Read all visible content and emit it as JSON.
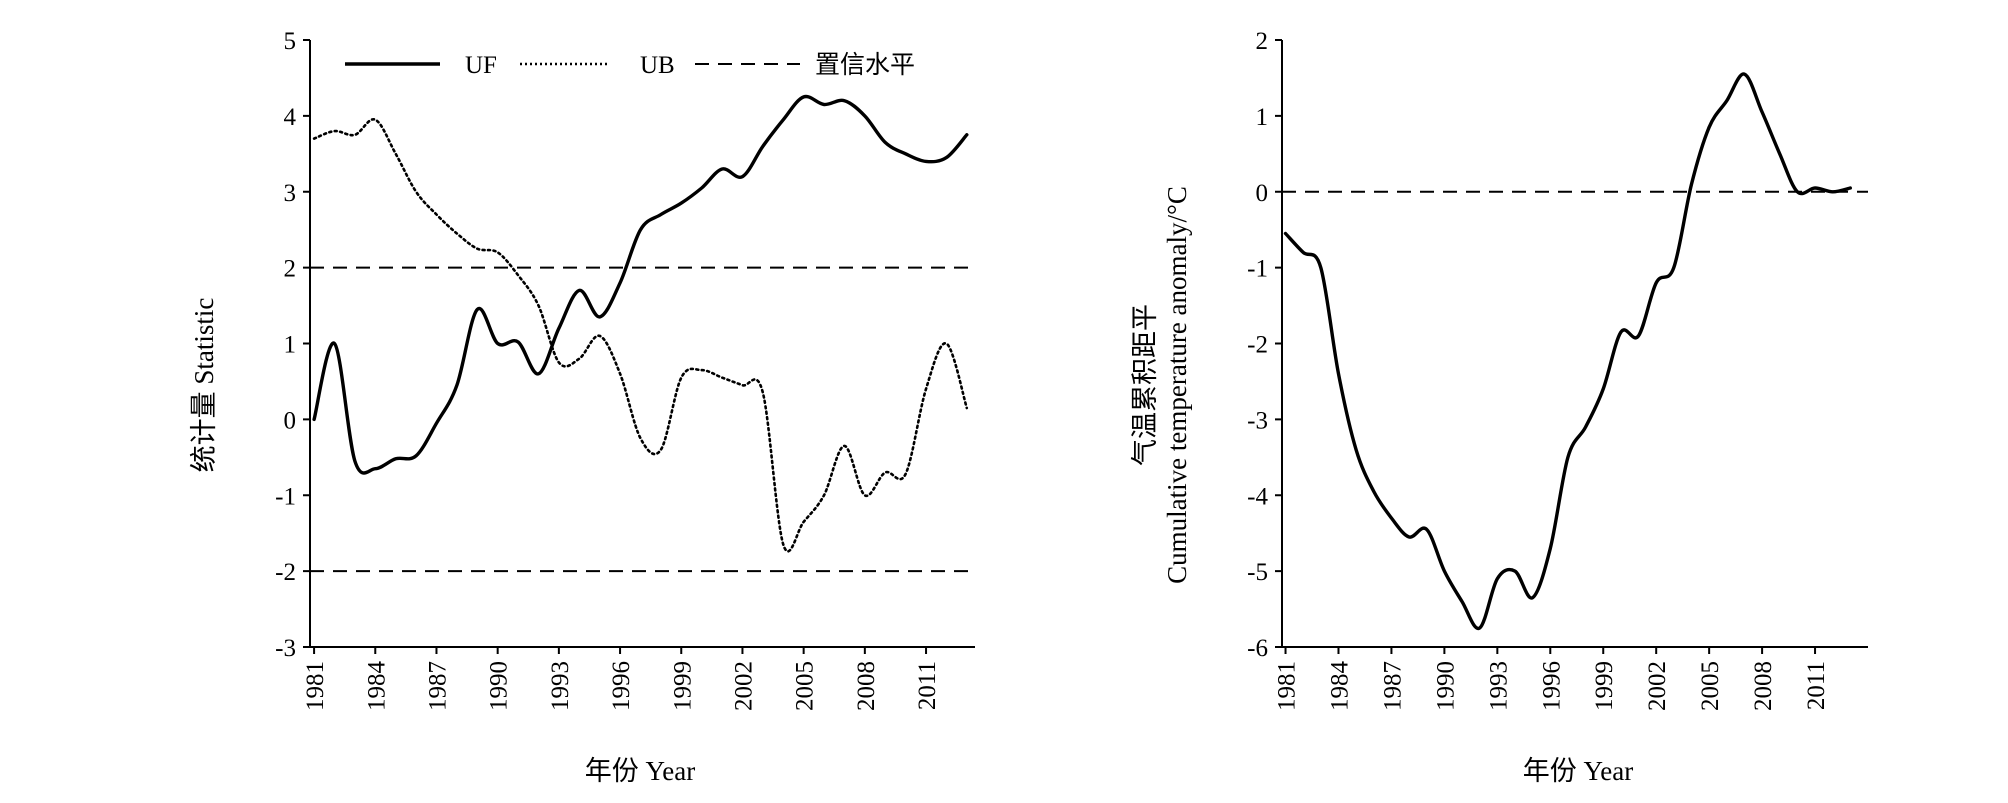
{
  "chart_data": [
    {
      "type": "line",
      "xlabel": "年份 Year",
      "ylabel": "统计量 Statistic",
      "xlim": [
        1980.8,
        2013.4
      ],
      "ylim": [
        -3,
        5
      ],
      "x_ticks": [
        "1981",
        "1984",
        "1987",
        "1990",
        "1993",
        "1996",
        "1999",
        "2002",
        "2005",
        "2008",
        "2011"
      ],
      "y_ticks": [
        "-3",
        "-2",
        "-1",
        "0",
        "1",
        "2",
        "3",
        "4",
        "5"
      ],
      "grid": false,
      "legend_position": "top",
      "series": [
        {
          "name": "UF",
          "style": "solid",
          "color": "#000000",
          "x": [
            1981,
            1982,
            1983,
            1984,
            1985,
            1986,
            1987,
            1988,
            1989,
            1990,
            1991,
            1992,
            1993,
            1994,
            1995,
            1996,
            1997,
            1998,
            1999,
            2000,
            2001,
            2002,
            2003,
            2004,
            2005,
            2006,
            2007,
            2008,
            2009,
            2010,
            2011,
            2012,
            2013
          ],
          "values": [
            0.0,
            1.0,
            -0.55,
            -0.65,
            -0.52,
            -0.48,
            -0.05,
            0.45,
            1.45,
            1.0,
            1.02,
            0.6,
            1.2,
            1.7,
            1.35,
            1.8,
            2.5,
            2.7,
            2.85,
            3.05,
            3.3,
            3.2,
            3.6,
            3.95,
            4.25,
            4.15,
            4.2,
            4.0,
            3.65,
            3.5,
            3.4,
            3.45,
            3.75
          ]
        },
        {
          "name": "UB",
          "style": "dotted",
          "color": "#000000",
          "x": [
            1981,
            1982,
            1983,
            1984,
            1985,
            1986,
            1987,
            1988,
            1989,
            1990,
            1991,
            1992,
            1993,
            1994,
            1995,
            1996,
            1997,
            1998,
            1999,
            2000,
            2001,
            2002,
            2003,
            2004,
            2005,
            2006,
            2007,
            2008,
            2009,
            2010,
            2011,
            2012,
            2013
          ],
          "values": [
            3.7,
            3.8,
            3.75,
            3.95,
            3.5,
            3.0,
            2.7,
            2.45,
            2.25,
            2.2,
            1.9,
            1.5,
            0.75,
            0.8,
            1.1,
            0.6,
            -0.25,
            -0.4,
            0.55,
            0.65,
            0.55,
            0.45,
            0.35,
            -1.65,
            -1.35,
            -1.0,
            -0.35,
            -1.0,
            -0.7,
            -0.72,
            0.4,
            1.0,
            0.15
          ]
        },
        {
          "name": "置信水平",
          "style": "dashed",
          "color": "#000000",
          "hlines": [
            2,
            -2
          ]
        }
      ]
    },
    {
      "type": "line",
      "xlabel": "年份 Year",
      "ylabel": "气温累积距平",
      "ylabel2": "Cumulative temperature anomaly/°C",
      "xlim": [
        1980.8,
        2014.0
      ],
      "ylim": [
        -6,
        2
      ],
      "x_ticks": [
        "1981",
        "1984",
        "1987",
        "1990",
        "1993",
        "1996",
        "1999",
        "2002",
        "2005",
        "2008",
        "2011"
      ],
      "y_ticks": [
        "-6",
        "-5",
        "-4",
        "-3",
        "-2",
        "-1",
        "0",
        "1",
        "2"
      ],
      "grid": false,
      "reference_line": 0,
      "series": [
        {
          "style": "solid",
          "color": "#000000",
          "x": [
            1981,
            1982,
            1983,
            1984,
            1985,
            1986,
            1987,
            1988,
            1989,
            1990,
            1991,
            1992,
            1993,
            1994,
            1995,
            1996,
            1997,
            1998,
            1999,
            2000,
            2001,
            2002,
            2003,
            2004,
            2005,
            2006,
            2007,
            2008,
            2009,
            2010,
            2011,
            2012,
            2013
          ],
          "values": [
            -0.55,
            -0.8,
            -1.0,
            -2.4,
            -3.4,
            -3.95,
            -4.3,
            -4.55,
            -4.45,
            -5.0,
            -5.4,
            -5.75,
            -5.1,
            -5.0,
            -5.35,
            -4.7,
            -3.5,
            -3.1,
            -2.6,
            -1.85,
            -1.9,
            -1.2,
            -1.0,
            0.1,
            0.85,
            1.2,
            1.55,
            1.05,
            0.5,
            0.0,
            0.05,
            0.0,
            0.05
          ]
        }
      ]
    }
  ]
}
